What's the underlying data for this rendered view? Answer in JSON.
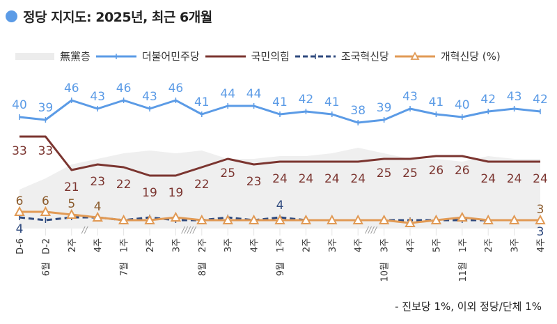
{
  "header": {
    "title": "정당 지지도: 2025년, 최근 6개월"
  },
  "legend": [
    {
      "key": "nonpartisan",
      "label": "無黨층"
    },
    {
      "key": "democratic",
      "label": "더불어민주당"
    },
    {
      "key": "ppp",
      "label": "국민의힘"
    },
    {
      "key": "rebuilding",
      "label": "조국혁신당"
    },
    {
      "key": "reform",
      "label": "개혁신당 (%)"
    }
  ],
  "footnote": "- 진보당 1%, 이외 정당/단체 1%",
  "colors": {
    "nonpartisan": "#efefef",
    "democratic": "#5b9be6",
    "ppp": "#7b3530",
    "rebuilding": "#2f4a7e",
    "reform": "#e19a55",
    "title_dot": "#5b9be6"
  },
  "chart_data": {
    "type": "line",
    "title": "정당 지지도: 2025년, 최근 6개월",
    "xlabel": "",
    "ylabel": "%",
    "ylim": [
      0,
      50
    ],
    "grid": false,
    "legend_position": "top",
    "categories": [
      "D-6",
      "D-2",
      "2주",
      "4주",
      "1주",
      "2주",
      "3주",
      "2주",
      "3주",
      "4주",
      "1주",
      "2주",
      "3주",
      "4주",
      "3주",
      "4주",
      "5주",
      "1주",
      "2주",
      "3주",
      "4주"
    ],
    "month_labels": [
      {
        "index": 1,
        "label": "6월"
      },
      {
        "index": 4,
        "label": "7월"
      },
      {
        "index": 7,
        "label": "8월"
      },
      {
        "index": 10,
        "label": "9월"
      },
      {
        "index": 14,
        "label": "10월"
      },
      {
        "index": 17,
        "label": "11월"
      }
    ],
    "breaks": [
      {
        "after_index": 2,
        "mark": "//"
      },
      {
        "after_index": 6,
        "mark": "/////"
      },
      {
        "after_index": 13,
        "mark": "////"
      }
    ],
    "series": [
      {
        "key": "nonpartisan",
        "name": "無黨층",
        "kind": "area",
        "labeled": false,
        "values": [
          14,
          18,
          23,
          25,
          27,
          28,
          27,
          28,
          25,
          25,
          26,
          26,
          27,
          29,
          27,
          25,
          25,
          24,
          26,
          25,
          25
        ]
      },
      {
        "key": "democratic",
        "name": "더불어민주당",
        "kind": "line",
        "values": [
          40,
          39,
          46,
          43,
          46,
          43,
          46,
          41,
          44,
          44,
          41,
          42,
          41,
          38,
          39,
          43,
          41,
          40,
          42,
          43,
          42
        ],
        "labels": [
          "40",
          "39",
          "46",
          "43",
          "46",
          "43",
          "46",
          "41",
          "44",
          "44",
          "41",
          "42",
          "41",
          "38",
          "39",
          "43",
          "41",
          "40",
          "42",
          "43",
          "42"
        ]
      },
      {
        "key": "ppp",
        "name": "국민의힘",
        "kind": "line",
        "values": [
          33,
          33,
          21,
          23,
          22,
          19,
          19,
          22,
          25,
          23,
          24,
          24,
          24,
          24,
          25,
          25,
          26,
          26,
          24,
          24,
          24
        ],
        "labels": [
          "33",
          "33",
          "21",
          "23",
          "22",
          "19",
          "19",
          "22",
          "25",
          "23",
          "24",
          "24",
          "24",
          "24",
          "25",
          "25",
          "26",
          "26",
          "24",
          "24",
          "24"
        ]
      },
      {
        "key": "rebuilding",
        "name": "조국혁신당",
        "kind": "dashed",
        "values": [
          4,
          3,
          4,
          4,
          3,
          4,
          3,
          3,
          4,
          3,
          4,
          3,
          3,
          3,
          3,
          3,
          3,
          3,
          3,
          3,
          3
        ],
        "labels": [
          "4",
          "",
          "",
          "",
          "",
          "",
          "",
          "",
          "",
          "",
          "4",
          "",
          "",
          "",
          "",
          "",
          "",
          "",
          "",
          "",
          "3"
        ]
      },
      {
        "key": "reform",
        "name": "개혁신당",
        "kind": "line-triangle",
        "values": [
          6,
          6,
          5,
          4,
          3,
          3,
          4,
          3,
          3,
          3,
          3,
          3,
          3,
          3,
          3,
          2,
          3,
          4,
          3,
          3,
          3
        ],
        "labels": [
          "6",
          "6",
          "5",
          "4",
          "",
          "",
          "",
          "",
          "",
          "",
          "",
          "",
          "",
          "",
          "",
          "",
          "",
          "",
          "",
          "",
          "3"
        ]
      }
    ]
  }
}
